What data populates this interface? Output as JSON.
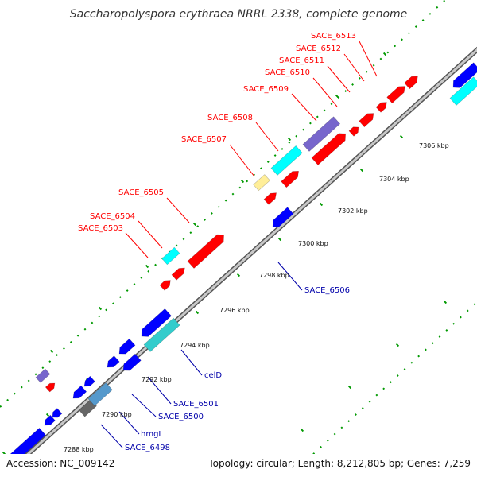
{
  "title": "Saccharopolyspora erythraea NRRL 2338, complete genome",
  "accession": "Accession: NC_009142",
  "summary": "Topology: circular; Length: 8,212,805 bp; Genes: 7,259",
  "colors": {
    "forward_gene": "#ff0000",
    "reverse_gene": "#0000ff",
    "label_forward": "#ff0000",
    "label_reverse": "#0000aa",
    "backbone": "#888888",
    "tick": "#009900"
  },
  "scale_labels": [
    "7288 kbp",
    "7290 kbp",
    "7292 kbp",
    "7294 kbp",
    "7296 kbp",
    "7298 kbp",
    "7300 kbp",
    "7302 kbp",
    "7304 kbp",
    "7306 kbp"
  ],
  "forward_labels": [
    "SACE_6513",
    "SACE_6512",
    "SACE_6511",
    "SACE_6510",
    "SACE_6509",
    "SACE_6508",
    "SACE_6507",
    "SACE_6505",
    "SACE_6504",
    "SACE_6503"
  ],
  "reverse_labels": [
    "SACE_6506",
    "celD",
    "SACE_6501",
    "SACE_6500",
    "hmgL",
    "SACE_6498"
  ]
}
